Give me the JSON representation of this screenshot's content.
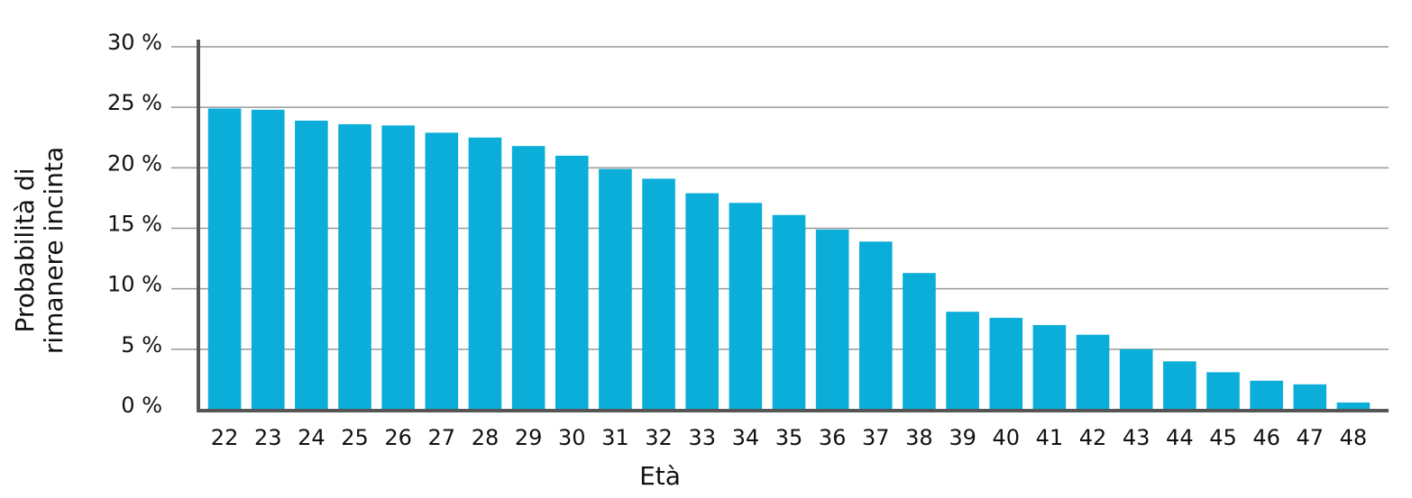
{
  "chart_data": {
    "type": "bar",
    "x_label": "Età",
    "y_label": "Probabilità di rimanere incinta",
    "categories": [
      "22",
      "23",
      "24",
      "25",
      "26",
      "27",
      "28",
      "29",
      "30",
      "31",
      "32",
      "33",
      "34",
      "35",
      "36",
      "37",
      "38",
      "39",
      "40",
      "41",
      "42",
      "43",
      "44",
      "45",
      "46",
      "47",
      "48"
    ],
    "values": [
      24.9,
      24.8,
      23.9,
      23.6,
      23.5,
      22.9,
      22.5,
      21.8,
      21.0,
      19.9,
      19.1,
      17.9,
      17.1,
      16.1,
      14.9,
      13.9,
      11.3,
      8.1,
      7.6,
      7.0,
      6.2,
      5.0,
      4.0,
      3.1,
      2.4,
      2.1,
      0.6
    ],
    "color": "#0aaed9",
    "ylim": [
      0,
      30
    ],
    "yticks": [
      {
        "value": 0,
        "label": "0 %"
      },
      {
        "value": 5,
        "label": "5 %"
      },
      {
        "value": 10,
        "label": "10 %"
      },
      {
        "value": 15,
        "label": "15 %"
      },
      {
        "value": 20,
        "label": "20 %"
      },
      {
        "value": 25,
        "label": "25 %"
      },
      {
        "value": 30,
        "label": "30 %"
      }
    ],
    "grid": true
  }
}
